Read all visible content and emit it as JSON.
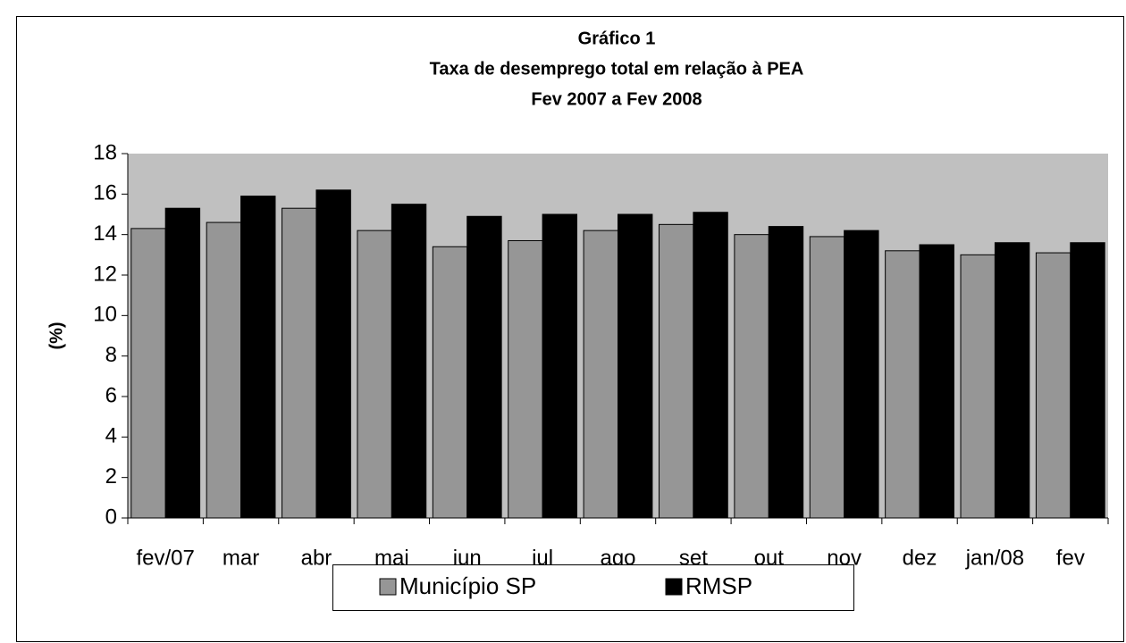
{
  "chart_data": {
    "type": "bar",
    "title": "Gráfico 1",
    "subtitle": [
      "Taxa de desemprego total em relação à PEA",
      "Fev 2007 a Fev 2008"
    ],
    "y_label": "(%)",
    "categories": [
      "fev/07",
      "mar",
      "abr",
      "mai",
      "jun",
      "jul",
      "ago",
      "set",
      "out",
      "nov",
      "dez",
      "jan/08",
      "fev"
    ],
    "series": [
      {
        "name": "Município SP",
        "color": "#969696",
        "values": [
          14.3,
          14.6,
          15.3,
          14.2,
          13.4,
          13.7,
          14.2,
          14.5,
          14.0,
          13.9,
          13.2,
          13.0,
          13.1
        ]
      },
      {
        "name": "RMSP",
        "color": "#000000",
        "values": [
          15.3,
          15.9,
          16.2,
          15.5,
          14.9,
          15.0,
          15.0,
          15.1,
          14.4,
          14.2,
          13.5,
          13.6,
          13.6
        ]
      }
    ],
    "ylim": [
      0,
      18
    ],
    "yticks": [
      0,
      2,
      4,
      6,
      8,
      10,
      12,
      14,
      16,
      18
    ],
    "plot_background": "#c0c0c0"
  }
}
